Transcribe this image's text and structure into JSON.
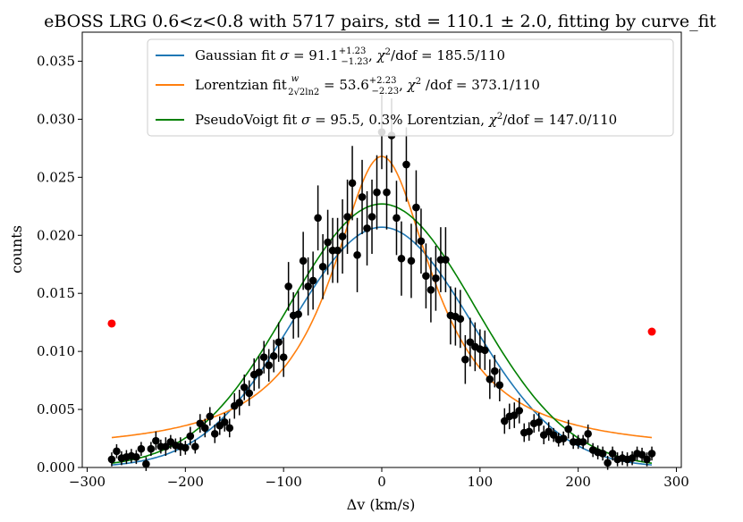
{
  "chart_data": {
    "type": "scatter",
    "title": "eBOSS LRG 0.6<z<0.8 with 5717 pairs, std = 110.1 ± 2.0, fitting by curve_fit",
    "xlabel": "Δv (km/s)",
    "ylabel": "counts",
    "xlim": [
      -305,
      305
    ],
    "ylim": [
      0,
      0.0375
    ],
    "xticks": [
      -300,
      -200,
      -100,
      0,
      100,
      200,
      300
    ],
    "xtick_labels": [
      "−300",
      "−200",
      "−100",
      "0",
      "100",
      "200",
      "300"
    ],
    "yticks": [
      0,
      0.005,
      0.01,
      0.015,
      0.02,
      0.025,
      0.03,
      0.035
    ],
    "ytick_labels": [
      "0.000",
      "0.005",
      "0.010",
      "0.015",
      "0.020",
      "0.025",
      "0.030",
      "0.035"
    ],
    "grid": false,
    "legend_position": "top-center",
    "legend": [
      {
        "text": "Gaussian fit σ = 91.1 (+1.23 −1.23), χ²/dof = 185.5/110",
        "color": "#1f77b4"
      },
      {
        "text": "Lorentzian fit w/(2√(2ln2)) = 53.6 (+2.23 −2.23), χ² /dof = 373.1/110",
        "color": "#ff7f0e"
      },
      {
        "text": "PseudoVoigt fit σ = 95.5, 0.3% Lorentzian, χ²/dof = 147.0/110",
        "color": "#008000"
      }
    ],
    "series": [
      {
        "name": "data",
        "kind": "errorbar",
        "color": "#000000",
        "x": [
          -275,
          -270,
          -265,
          -260,
          -255,
          -250,
          -245,
          -240,
          -235,
          -230,
          -225,
          -220,
          -215,
          -210,
          -205,
          -200,
          -195,
          -190,
          -185,
          -180,
          -175,
          -170,
          -165,
          -160,
          -155,
          -150,
          -145,
          -140,
          -135,
          -130,
          -125,
          -120,
          -115,
          -110,
          -105,
          -100,
          -95,
          -90,
          -85,
          -80,
          -75,
          -70,
          -65,
          -60,
          -55,
          -50,
          -45,
          -40,
          -35,
          -30,
          -25,
          -20,
          -15,
          -10,
          -5,
          0,
          5,
          10,
          15,
          20,
          25,
          30,
          35,
          40,
          45,
          50,
          55,
          60,
          65,
          70,
          75,
          80,
          85,
          90,
          95,
          100,
          105,
          110,
          115,
          120,
          125,
          130,
          135,
          140,
          145,
          150,
          155,
          160,
          165,
          170,
          175,
          180,
          185,
          190,
          195,
          200,
          205,
          210,
          215,
          220,
          225,
          230,
          235,
          240,
          245,
          250,
          255,
          260,
          265,
          270,
          275
        ],
        "y": [
          0.0007,
          0.0014,
          0.0008,
          0.0009,
          0.001,
          0.0009,
          0.0016,
          0.0003,
          0.0016,
          0.0023,
          0.0018,
          0.0018,
          0.0022,
          0.0019,
          0.0018,
          0.0017,
          0.0027,
          0.0018,
          0.0038,
          0.0034,
          0.0044,
          0.0029,
          0.0036,
          0.0039,
          0.0034,
          0.0053,
          0.0056,
          0.0069,
          0.0064,
          0.008,
          0.0082,
          0.0095,
          0.0088,
          0.0096,
          0.0108,
          0.0095,
          0.0156,
          0.0131,
          0.0132,
          0.0178,
          0.0156,
          0.0161,
          0.0215,
          0.0173,
          0.0194,
          0.0187,
          0.0187,
          0.0199,
          0.0216,
          0.0245,
          0.0183,
          0.0233,
          0.0206,
          0.0216,
          0.0237,
          0.0289,
          0.0237,
          0.0286,
          0.0215,
          0.018,
          0.0261,
          0.0178,
          0.0224,
          0.0195,
          0.0165,
          0.0153,
          0.0163,
          0.0179,
          0.0179,
          0.0131,
          0.013,
          0.0128,
          0.0093,
          0.0108,
          0.0104,
          0.0102,
          0.0101,
          0.0076,
          0.0083,
          0.0071,
          0.004,
          0.0044,
          0.0045,
          0.0049,
          0.003,
          0.0031,
          0.0038,
          0.0039,
          0.0028,
          0.0031,
          0.0028,
          0.0024,
          0.0025,
          0.0033,
          0.0022,
          0.0022,
          0.0022,
          0.0029,
          0.0015,
          0.0013,
          0.0012,
          0.0004,
          0.0012,
          0.0007,
          0.0008,
          0.0007,
          0.0008,
          0.0012,
          0.0011,
          0.0007,
          0.0012
        ],
        "yerr": [
          0.0006,
          0.0006,
          0.0006,
          0.0006,
          0.0006,
          0.0006,
          0.0006,
          0.0006,
          0.0006,
          0.0008,
          0.0006,
          0.0008,
          0.0006,
          0.0006,
          0.0008,
          0.0006,
          0.0008,
          0.0006,
          0.0008,
          0.0008,
          0.0008,
          0.0008,
          0.0008,
          0.0008,
          0.0008,
          0.0011,
          0.0011,
          0.0011,
          0.0011,
          0.0014,
          0.0014,
          0.0014,
          0.0014,
          0.0014,
          0.0017,
          0.0017,
          0.0021,
          0.002,
          0.002,
          0.0025,
          0.0025,
          0.0025,
          0.0028,
          0.0028,
          0.0028,
          0.0028,
          0.0028,
          0.0032,
          0.0032,
          0.0032,
          0.0032,
          0.0032,
          0.0032,
          0.0032,
          0.0032,
          0.0032,
          0.0032,
          0.0032,
          0.0032,
          0.0032,
          0.0032,
          0.0032,
          0.0032,
          0.0028,
          0.0028,
          0.0028,
          0.0028,
          0.0028,
          0.0028,
          0.0025,
          0.0025,
          0.0025,
          0.0021,
          0.0021,
          0.0021,
          0.0017,
          0.0017,
          0.0017,
          0.0014,
          0.0014,
          0.0011,
          0.0011,
          0.0011,
          0.0011,
          0.0008,
          0.0008,
          0.0008,
          0.0008,
          0.0008,
          0.0008,
          0.0006,
          0.0006,
          0.0006,
          0.0008,
          0.0006,
          0.0006,
          0.0006,
          0.0008,
          0.0006,
          0.0006,
          0.0006,
          0.0006,
          0.0006,
          0.0006,
          0.0006,
          0.0006,
          0.0006,
          0.0006,
          0.0006,
          0.0006,
          0.0006
        ]
      },
      {
        "name": "outliers",
        "kind": "scatter",
        "color": "#ff0000",
        "x": [
          -275,
          275
        ],
        "y": [
          0.0124,
          0.0117
        ]
      },
      {
        "name": "Gaussian fit",
        "kind": "line",
        "color": "#1f77b4",
        "model": "gaussian",
        "amplitude": 0.0207,
        "sigma": 91.1,
        "center": 0,
        "x": [
          -275,
          275
        ]
      },
      {
        "name": "Lorentzian fit",
        "kind": "line",
        "color": "#ff7f0e",
        "model": "lorentzian",
        "amplitude": 0.0255,
        "gamma": 63.1,
        "offset": 0.0013,
        "center": 0,
        "x": [
          -275,
          275
        ]
      },
      {
        "name": "PseudoVoigt fit",
        "kind": "line",
        "color": "#008000",
        "model": "pseudovoigt",
        "amplitude": 0.0227,
        "sigma": 95.5,
        "lorentz_fraction": 0.003,
        "center": 0,
        "x": [
          -275,
          275
        ]
      }
    ]
  }
}
